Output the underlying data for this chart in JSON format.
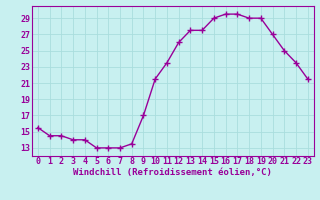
{
  "hours": [
    0,
    1,
    2,
    3,
    4,
    5,
    6,
    7,
    8,
    9,
    10,
    11,
    12,
    13,
    14,
    15,
    16,
    17,
    18,
    19,
    20,
    21,
    22,
    23
  ],
  "values": [
    15.5,
    14.5,
    14.5,
    14.0,
    14.0,
    13.0,
    13.0,
    13.0,
    13.5,
    17.0,
    21.5,
    23.5,
    26.0,
    27.5,
    27.5,
    29.0,
    29.5,
    29.5,
    29.0,
    29.0,
    27.0,
    25.0,
    23.5,
    21.5
  ],
  "line_color": "#990099",
  "marker": "+",
  "marker_size": 4,
  "line_width": 1.0,
  "xlabel": "Windchill (Refroidissement éolien,°C)",
  "xlabel_fontsize": 6.5,
  "ylabel_ticks": [
    13,
    15,
    17,
    19,
    21,
    23,
    25,
    27,
    29
  ],
  "xlim": [
    -0.5,
    23.5
  ],
  "ylim": [
    12.0,
    30.5
  ],
  "background_color": "#c8f0f0",
  "grid_color": "#aadddd",
  "tick_fontsize": 6,
  "title": ""
}
